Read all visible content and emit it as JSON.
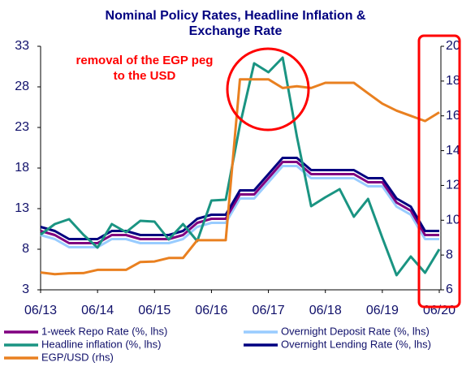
{
  "chart_data": {
    "type": "line",
    "title": [
      "Nominal Policy Rates, Headline Inflation &",
      "Exchange Rate"
    ],
    "annotation": [
      "removal of the EGP peg",
      "to the USD"
    ],
    "categories": [
      "06/13",
      null,
      null,
      null,
      "06/14",
      null,
      null,
      null,
      "06/15",
      null,
      null,
      null,
      "06/16",
      null,
      null,
      null,
      "06/17",
      null,
      null,
      null,
      "06/18",
      null,
      null,
      null,
      "06/19",
      null,
      null,
      null,
      "06/20"
    ],
    "ylim": [
      3,
      33
    ],
    "yticks": [
      3,
      8,
      13,
      18,
      23,
      28,
      33
    ],
    "y2lim": [
      6,
      20
    ],
    "y2ticks": [
      6,
      8,
      10,
      12,
      14,
      16,
      18,
      20
    ],
    "series": [
      {
        "name": "1-week Repo Rate (%, lhs)",
        "color": "#800080",
        "values": [
          10.25,
          9.75,
          8.75,
          8.75,
          8.75,
          9.75,
          9.75,
          9.25,
          9.25,
          9.25,
          9.75,
          11.25,
          11.75,
          11.75,
          14.75,
          14.75,
          16.75,
          18.75,
          18.75,
          17.25,
          17.25,
          17.25,
          17.25,
          16.25,
          16.25,
          13.75,
          12.75,
          9.75,
          9.75
        ]
      },
      {
        "name": "Overnight Deposit Rate (%, lhs)",
        "color": "#99ccff",
        "values": [
          9.75,
          9.25,
          8.25,
          8.25,
          8.25,
          9.25,
          9.25,
          8.75,
          8.75,
          8.75,
          9.25,
          10.75,
          11.25,
          11.25,
          14.25,
          14.25,
          16.25,
          18.25,
          18.25,
          16.75,
          16.75,
          16.75,
          16.75,
          15.75,
          15.75,
          13.25,
          12.25,
          9.25,
          9.25
        ]
      },
      {
        "name": "Headline inflation (%, lhs)",
        "color": "#1a9482",
        "values": [
          9.8,
          11.1,
          11.7,
          9.8,
          8.2,
          11.1,
          10.1,
          11.5,
          11.4,
          9.2,
          11.1,
          9.0,
          14.0,
          14.1,
          23.3,
          30.9,
          29.8,
          31.6,
          21.9,
          13.3,
          14.4,
          15.4,
          12.0,
          14.2,
          9.4,
          4.8,
          7.1,
          5.1,
          8.0
        ]
      },
      {
        "name": "Overnight Lending Rate (%, lhs)",
        "color": "#000080",
        "values": [
          10.75,
          10.25,
          9.25,
          9.25,
          9.25,
          10.25,
          10.25,
          9.75,
          9.75,
          9.75,
          10.25,
          11.75,
          12.25,
          12.25,
          15.25,
          15.25,
          17.25,
          19.25,
          19.25,
          17.75,
          17.75,
          17.75,
          17.75,
          16.75,
          16.75,
          14.25,
          13.25,
          10.25,
          10.25
        ]
      },
      {
        "name": "EGP/USD (rhs)",
        "color": "#e98020",
        "axis": "y2",
        "values": [
          7.0,
          6.9,
          6.95,
          6.96,
          7.15,
          7.15,
          7.15,
          7.6,
          7.63,
          7.83,
          7.83,
          8.85,
          8.85,
          8.85,
          18.1,
          18.1,
          18.1,
          17.6,
          17.7,
          17.6,
          17.9,
          17.9,
          17.9,
          17.3,
          16.7,
          16.3,
          16.0,
          15.7,
          16.2
        ]
      }
    ]
  }
}
